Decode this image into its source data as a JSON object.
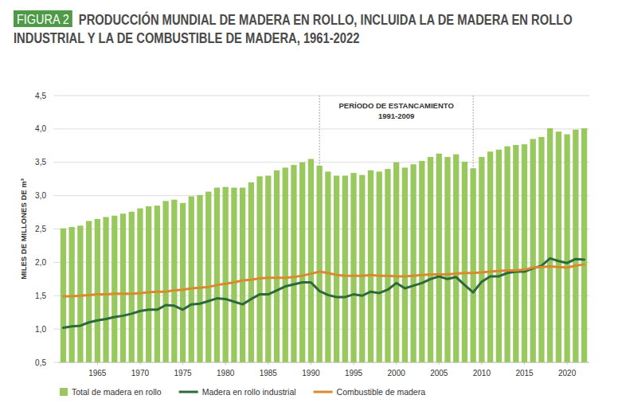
{
  "chart_data": {
    "type": "bar",
    "figure_label": "FIGURA 2",
    "title": "PRODUCCIÓN MUNDIAL DE MADERA EN ROLLO, INCLUIDA LA DE MADERA EN ROLLO INDUSTRIAL Y LA DE COMBUSTIBLE DE MADERA, 1961-2022",
    "y_label": "MILES DE MILLONES DE m³",
    "annotation": {
      "lines": [
        "PERÍODO DE ESTANCAMIENTO",
        "1991-2009"
      ],
      "x": [
        1991,
        2009
      ]
    },
    "x": [
      1961,
      1962,
      1963,
      1964,
      1965,
      1966,
      1967,
      1968,
      1969,
      1970,
      1971,
      1972,
      1973,
      1974,
      1975,
      1976,
      1977,
      1978,
      1979,
      1980,
      1981,
      1982,
      1983,
      1984,
      1985,
      1986,
      1987,
      1988,
      1989,
      1990,
      1991,
      1992,
      1993,
      1994,
      1995,
      1996,
      1997,
      1998,
      1999,
      2000,
      2001,
      2002,
      2003,
      2004,
      2005,
      2006,
      2007,
      2008,
      2009,
      2010,
      2011,
      2012,
      2013,
      2014,
      2015,
      2016,
      2017,
      2018,
      2019,
      2020,
      2021,
      2022
    ],
    "xlim": [
      1960.4,
      2022.6
    ],
    "xticks": [
      1965,
      1970,
      1975,
      1980,
      1985,
      1990,
      1995,
      2000,
      2005,
      2010,
      2015,
      2020
    ],
    "ylim": [
      0.5,
      4.5
    ],
    "yticks": [
      {
        "value": 0.5,
        "label": "0,5"
      },
      {
        "value": 1.0,
        "label": "1,0"
      },
      {
        "value": 1.5,
        "label": "1,5"
      },
      {
        "value": 2.0,
        "label": "2,0"
      },
      {
        "value": 2.5,
        "label": "2,5"
      },
      {
        "value": 3.0,
        "label": "3,0"
      },
      {
        "value": 3.5,
        "label": "3,5"
      },
      {
        "value": 4.0,
        "label": "4,0"
      },
      {
        "value": 4.5,
        "label": "4,5"
      }
    ],
    "grid": true,
    "legend": "bottom",
    "series": [
      {
        "name": "Total de madera en rollo",
        "type": "bar",
        "color": "#99c95e",
        "values": [
          2.51,
          2.53,
          2.55,
          2.62,
          2.65,
          2.68,
          2.7,
          2.73,
          2.76,
          2.81,
          2.84,
          2.85,
          2.92,
          2.94,
          2.89,
          2.99,
          3.01,
          3.06,
          3.12,
          3.13,
          3.12,
          3.12,
          3.2,
          3.29,
          3.3,
          3.38,
          3.42,
          3.46,
          3.5,
          3.55,
          3.45,
          3.36,
          3.3,
          3.3,
          3.34,
          3.31,
          3.38,
          3.36,
          3.4,
          3.5,
          3.42,
          3.47,
          3.52,
          3.58,
          3.63,
          3.58,
          3.62,
          3.51,
          3.41,
          3.58,
          3.66,
          3.69,
          3.74,
          3.76,
          3.77,
          3.85,
          3.88,
          4.01,
          3.96,
          3.92,
          3.99,
          4.01
        ]
      },
      {
        "name": "Madera en rollo industrial",
        "type": "line",
        "color": "#2d6a3b",
        "values": [
          1.02,
          1.04,
          1.05,
          1.1,
          1.13,
          1.15,
          1.18,
          1.2,
          1.23,
          1.27,
          1.29,
          1.29,
          1.36,
          1.35,
          1.29,
          1.37,
          1.38,
          1.42,
          1.46,
          1.45,
          1.41,
          1.37,
          1.45,
          1.52,
          1.52,
          1.58,
          1.64,
          1.67,
          1.7,
          1.7,
          1.57,
          1.51,
          1.48,
          1.48,
          1.52,
          1.5,
          1.56,
          1.54,
          1.59,
          1.69,
          1.61,
          1.65,
          1.69,
          1.75,
          1.79,
          1.75,
          1.78,
          1.66,
          1.55,
          1.71,
          1.79,
          1.79,
          1.84,
          1.86,
          1.86,
          1.91,
          1.95,
          2.06,
          2.02,
          1.99,
          2.05,
          2.04
        ]
      },
      {
        "name": "Combustible de madera",
        "type": "line",
        "color": "#d98a2e",
        "values": [
          1.49,
          1.49,
          1.5,
          1.51,
          1.52,
          1.52,
          1.53,
          1.53,
          1.53,
          1.54,
          1.55,
          1.56,
          1.56,
          1.58,
          1.59,
          1.61,
          1.62,
          1.63,
          1.66,
          1.68,
          1.7,
          1.73,
          1.74,
          1.76,
          1.77,
          1.77,
          1.77,
          1.78,
          1.8,
          1.83,
          1.86,
          1.84,
          1.81,
          1.8,
          1.8,
          1.8,
          1.81,
          1.8,
          1.8,
          1.79,
          1.79,
          1.8,
          1.81,
          1.82,
          1.82,
          1.82,
          1.83,
          1.84,
          1.84,
          1.85,
          1.86,
          1.87,
          1.88,
          1.88,
          1.89,
          1.92,
          1.93,
          1.94,
          1.93,
          1.92,
          1.95,
          1.97
        ]
      }
    ]
  }
}
